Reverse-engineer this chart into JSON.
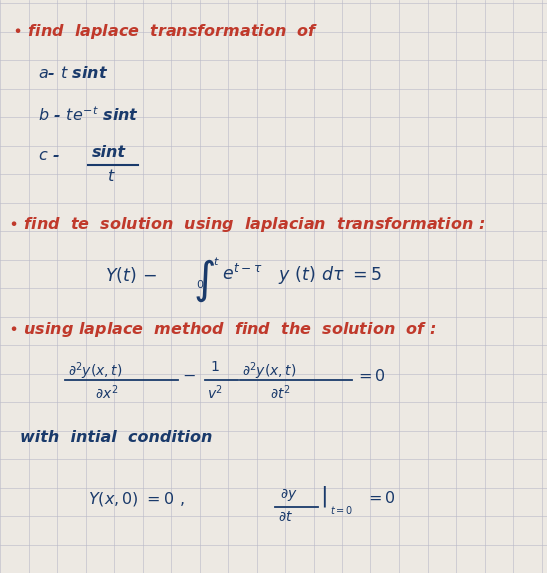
{
  "background_color": "#ede9e3",
  "grid_color": "#b8b8c8",
  "dark_blue": "#1a3a6b",
  "red": "#c0392b",
  "fig_width": 5.47,
  "fig_height": 5.73,
  "dpi": 100
}
